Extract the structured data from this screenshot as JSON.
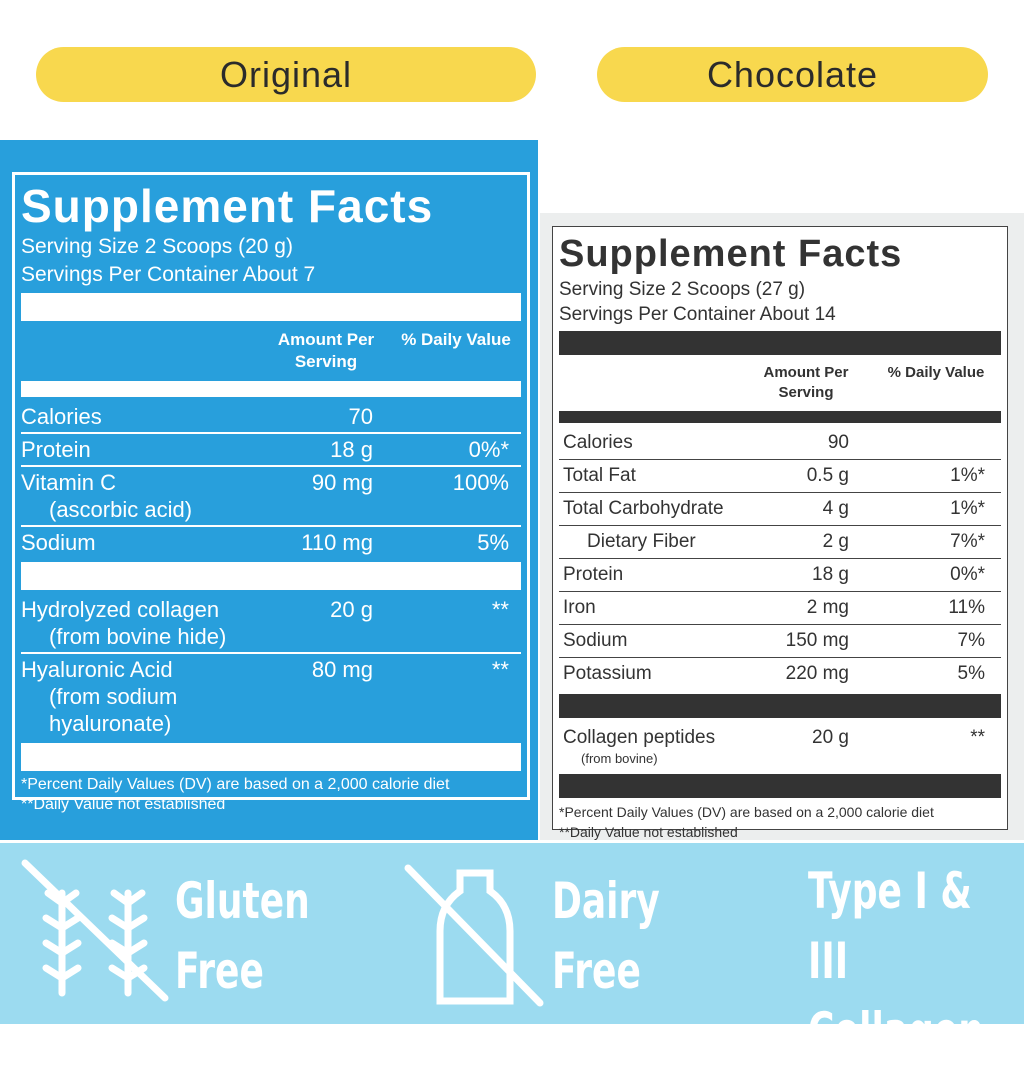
{
  "labels": [
    "Original",
    "Chocolate"
  ],
  "panels": [
    {
      "title": "Supplement Facts",
      "serving_size": "Serving Size 2 Scoops (20 g)",
      "servings_per_container": "Servings Per Container About 7",
      "header": [
        "Amount Per Serving",
        "% Daily Value"
      ],
      "sections": [
        [
          {
            "name": "Calories",
            "amount": "70"
          },
          {
            "name": "Protein",
            "amount": "18 g",
            "dv": "0%*"
          },
          {
            "name": "Vitamin C",
            "sub": "(ascorbic acid)",
            "amount": "90 mg",
            "dv": "100%"
          },
          {
            "name": "Sodium",
            "amount": "110 mg",
            "dv": "5%"
          }
        ],
        [
          {
            "name": "Hydrolyzed collagen",
            "sub": "(from bovine hide)",
            "amount": "20 g",
            "dv": "**"
          },
          {
            "name": "Hyaluronic Acid",
            "sub": "(from sodium hyaluronate)",
            "amount": "80 mg",
            "dv": "**"
          }
        ]
      ],
      "footnotes": [
        "*Percent Daily Values (DV) are based on a 2,000 calorie diet",
        "**Daily Value not established"
      ]
    },
    {
      "title": "Supplement Facts",
      "serving_size": "Serving Size 2 Scoops (27 g)",
      "servings_per_container": "Servings Per Container About 14",
      "header": [
        "Amount Per Serving",
        "% Daily Value"
      ],
      "sections": [
        [
          {
            "name": "Calories",
            "amount": "90"
          },
          {
            "name": "Total Fat",
            "amount": "0.5 g",
            "dv": "1%*"
          },
          {
            "name": "Total Carbohydrate",
            "amount": "4 g",
            "dv": "1%*"
          },
          {
            "name": "Dietary Fiber",
            "amount": "2 g",
            "dv": "7%*",
            "indent": true
          },
          {
            "name": "Protein",
            "amount": "18 g",
            "dv": "0%*"
          },
          {
            "name": "Iron",
            "amount": "2 mg",
            "dv": "11%"
          },
          {
            "name": "Sodium",
            "amount": "150 mg",
            "dv": "7%"
          },
          {
            "name": "Potassium",
            "amount": "220 mg",
            "dv": "5%"
          }
        ],
        [
          {
            "name": "Collagen peptides",
            "sub": "(from bovine)",
            "amount": "20 g",
            "dv": "**"
          }
        ]
      ],
      "footnotes": [
        "*Percent Daily Values (DV) are based on a 2,000 calorie diet",
        "**Daily Value not established"
      ]
    }
  ],
  "badges": [
    {
      "lines": [
        "Gluten",
        "Free"
      ]
    },
    {
      "lines": [
        "Dairy",
        "Free"
      ]
    },
    {
      "lines": [
        "Type I & III",
        "Collagen"
      ]
    }
  ]
}
